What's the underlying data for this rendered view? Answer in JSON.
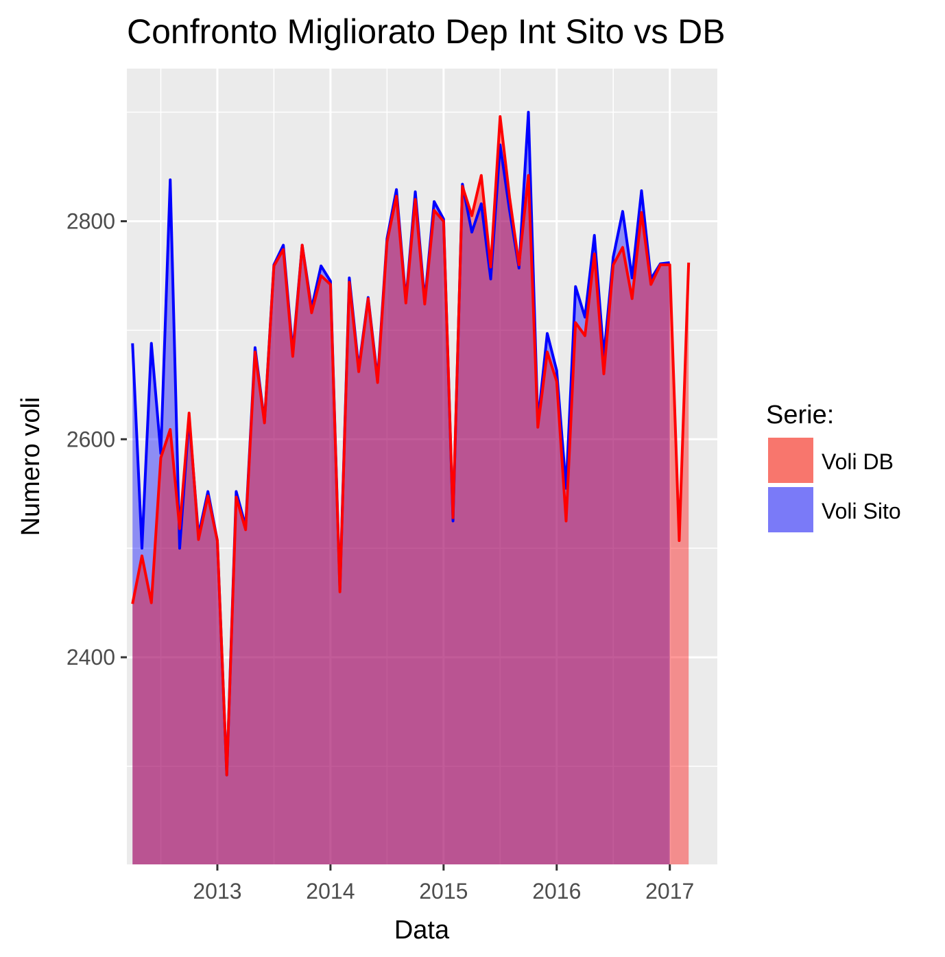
{
  "chart_data": {
    "type": "area",
    "title": "Confronto Migliorato Dep Int Sito vs DB",
    "xlabel": "Data",
    "ylabel": "Numero voli",
    "x_ticks": [
      "2013",
      "2014",
      "2015",
      "2016",
      "2017"
    ],
    "y_ticks": [
      "2400",
      "2600",
      "2800"
    ],
    "xlim": [
      2012.2,
      2017.42
    ],
    "ylim": [
      2210,
      2940
    ],
    "area_baseline": 2210,
    "x_start": 2012.25,
    "x_step": 0.08333,
    "legend": {
      "title": "Serie:",
      "position": "right"
    },
    "series": [
      {
        "name": "Voli DB",
        "color": "#ff0000",
        "fill": "#f8766d",
        "values": [
          2449,
          2493,
          2450,
          2583,
          2609,
          2518,
          2624,
          2508,
          2548,
          2507,
          2292,
          2547,
          2517,
          2680,
          2615,
          2759,
          2774,
          2676,
          2778,
          2716,
          2750,
          2742,
          2460,
          2744,
          2662,
          2729,
          2652,
          2781,
          2823,
          2725,
          2820,
          2724,
          2810,
          2800,
          2528,
          2832,
          2805,
          2842,
          2758,
          2896,
          2822,
          2760,
          2842,
          2611,
          2680,
          2653,
          2525,
          2707,
          2695,
          2770,
          2660,
          2760,
          2776,
          2729,
          2808,
          2742,
          2760,
          2760,
          2507,
          2762
        ]
      },
      {
        "name": "Voli Sito",
        "color": "#0000ff",
        "fill": "#7a7af8",
        "values": [
          2688,
          2500,
          2688,
          2587,
          2838,
          2500,
          2620,
          2512,
          2552,
          2507,
          2292,
          2552,
          2520,
          2684,
          2616,
          2760,
          2778,
          2680,
          2778,
          2720,
          2759,
          2745,
          2462,
          2748,
          2665,
          2730,
          2655,
          2784,
          2829,
          2727,
          2827,
          2727,
          2818,
          2802,
          2525,
          2834,
          2790,
          2816,
          2747,
          2870,
          2810,
          2757,
          2900,
          2615,
          2697,
          2663,
          2555,
          2740,
          2712,
          2787,
          2676,
          2767,
          2809,
          2748,
          2828,
          2747,
          2761,
          2762
        ]
      }
    ]
  }
}
